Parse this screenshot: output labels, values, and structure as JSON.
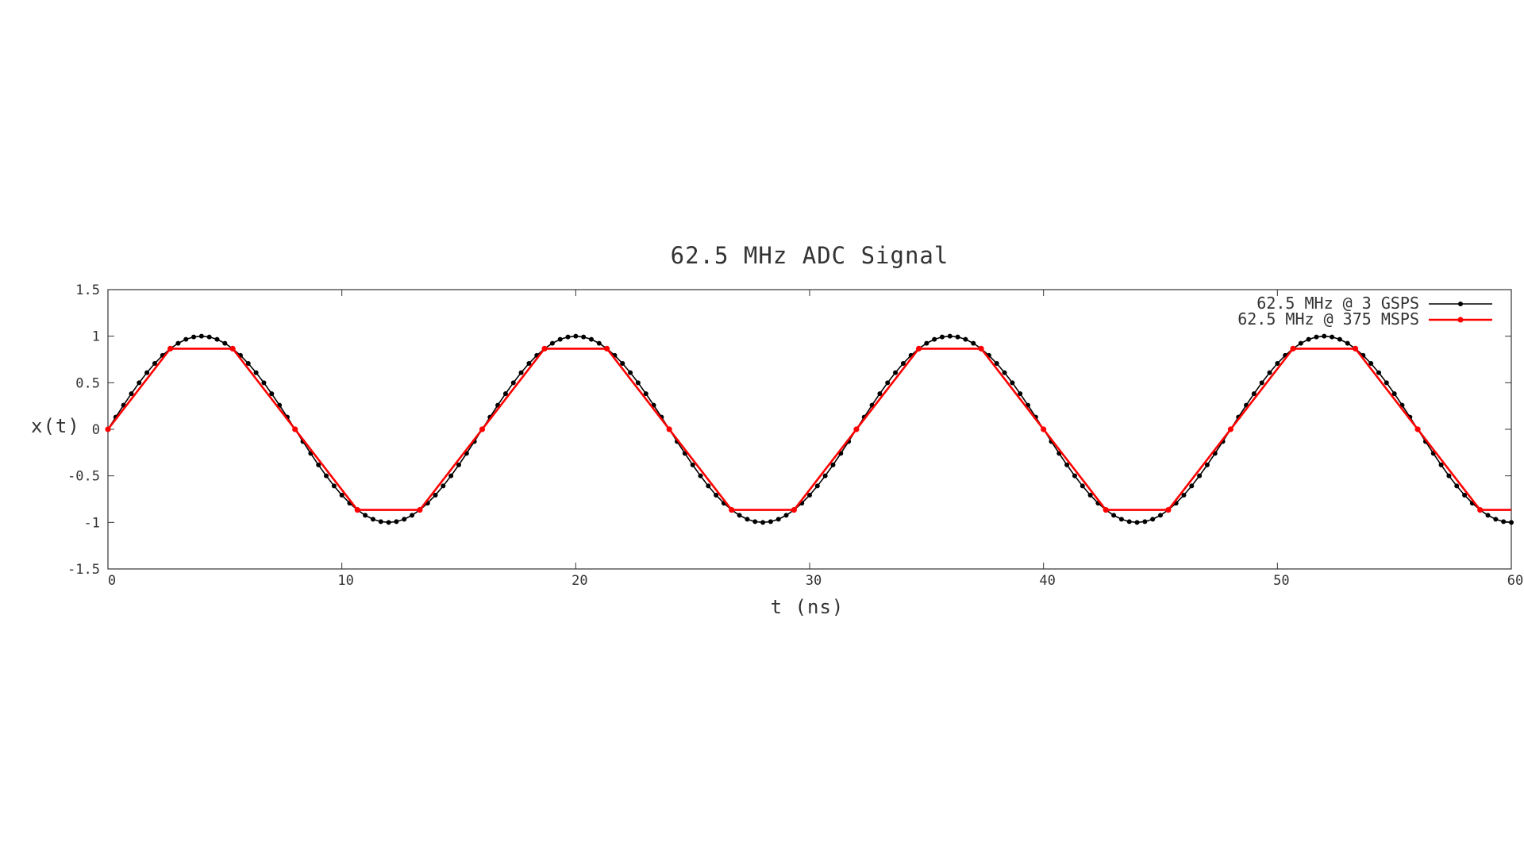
{
  "chart_data": {
    "type": "line",
    "title": "62.5 MHz ADC Signal",
    "xlabel": "t (ns)",
    "ylabel": "x(t)",
    "xlim": [
      0,
      60
    ],
    "ylim": [
      -1.5,
      1.5
    ],
    "x_ticks": [
      "0",
      "10",
      "20",
      "30",
      "40",
      "50",
      "60"
    ],
    "y_ticks": [
      "1.5",
      "1",
      "0.5",
      "0",
      "-0.5",
      "-1",
      "-1.5"
    ],
    "grid": false,
    "legend_position": "top-right",
    "series": [
      {
        "name": "62.5 MHz @ 3 GSPS",
        "color": "#000000",
        "marker": "circle",
        "sample_rate_gsps": 3,
        "signal_frequency_mhz": 62.5,
        "amplitude": 1
      },
      {
        "name": "62.5 MHz @ 375 MSPS",
        "color": "#ff0000",
        "marker": "circle",
        "sample_rate_gsps": 0.375,
        "signal_frequency_mhz": 62.5,
        "amplitude": 1
      }
    ]
  }
}
